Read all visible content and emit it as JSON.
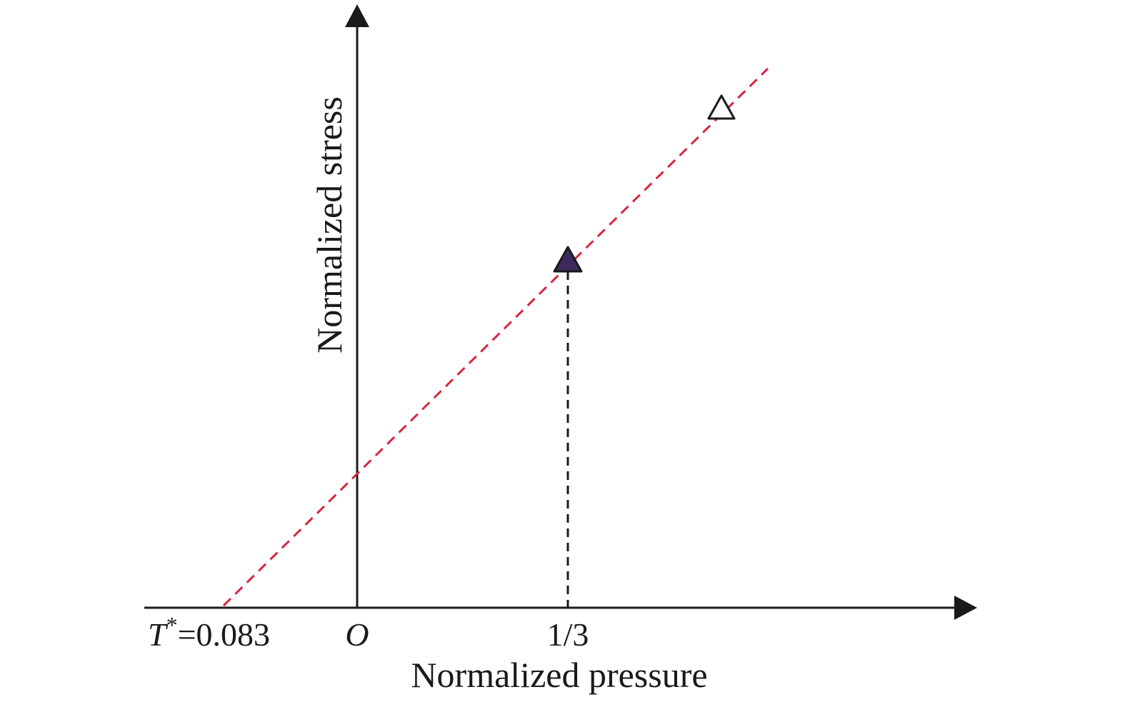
{
  "axes": {
    "x_title": "Normalized pressure",
    "y_title": "Normalized stress"
  },
  "labels": {
    "t_star_symbol": "T",
    "t_star_superscript": "*",
    "t_star_value": "=0.083",
    "origin": "O",
    "one_third": "1/3"
  },
  "colors": {
    "axis": "#1a1a1a",
    "fit_line": "#d7263d",
    "guide_line": "#1a1a1a",
    "filled_marker": "#3d2a5c",
    "open_marker": "#ffffff"
  }
}
